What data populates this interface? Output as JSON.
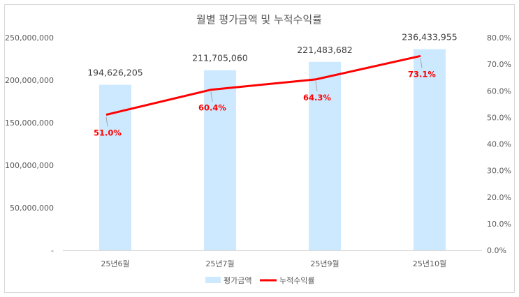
{
  "chart_data": {
    "type": "bar",
    "title": "월별 평가금액 및 누적수익률",
    "categories": [
      "25년6월",
      "25년7월",
      "25년9월",
      "25년10월"
    ],
    "series": [
      {
        "name": "평가금액",
        "type": "bar",
        "axis": "left",
        "values": [
          194626205,
          211705060,
          221483682,
          236433955
        ],
        "labels": [
          "194,626,205",
          "211,705,060",
          "221,483,682",
          "236,433,955"
        ],
        "color": "#cce9ff"
      },
      {
        "name": "누적수익률",
        "type": "line",
        "axis": "right",
        "values": [
          51.0,
          60.4,
          64.3,
          73.1
        ],
        "labels": [
          "51.0%",
          "60.4%",
          "64.3%",
          "73.1%"
        ],
        "color": "#ff0000"
      }
    ],
    "y_left": {
      "ylim": [
        0,
        250000000
      ],
      "ticks": [
        0,
        50000000,
        100000000,
        150000000,
        200000000,
        250000000
      ],
      "tick_labels": [
        "-",
        "50,000,000",
        "100,000,000",
        "150,000,000",
        "200,000,000",
        "250,000,000"
      ]
    },
    "y_right": {
      "ylim": [
        0,
        80
      ],
      "ticks": [
        0,
        10,
        20,
        30,
        40,
        50,
        60,
        70,
        80
      ],
      "tick_labels": [
        "0.0%",
        "10.0%",
        "20.0%",
        "30.0%",
        "40.0%",
        "50.0%",
        "60.0%",
        "70.0%",
        "80.0%"
      ]
    },
    "grid": false,
    "legend_position": "bottom"
  }
}
